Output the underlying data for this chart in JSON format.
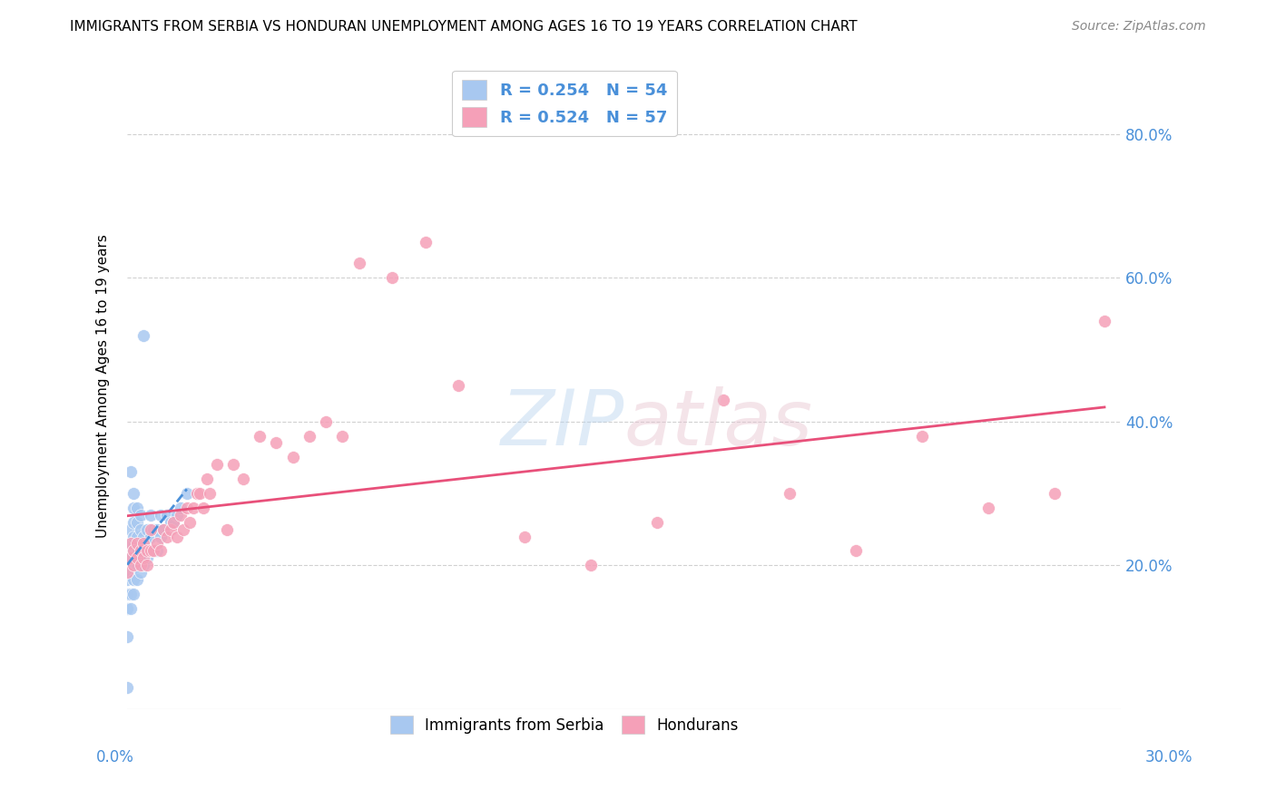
{
  "title": "IMMIGRANTS FROM SERBIA VS HONDURAN UNEMPLOYMENT AMONG AGES 16 TO 19 YEARS CORRELATION CHART",
  "source": "Source: ZipAtlas.com",
  "ylabel": "Unemployment Among Ages 16 to 19 years",
  "y_tick_labels": [
    "",
    "20.0%",
    "40.0%",
    "60.0%",
    "80.0%"
  ],
  "y_tick_positions": [
    0.0,
    0.2,
    0.4,
    0.6,
    0.8
  ],
  "xlim": [
    0.0,
    0.3
  ],
  "ylim": [
    0.0,
    0.9
  ],
  "color_serbia": "#a8c8f0",
  "color_honduran": "#f5a0b8",
  "color_trendline_serbia": "#4a90d9",
  "color_trendline_honduran": "#e8507a",
  "serbia_x": [
    0.0,
    0.0,
    0.0,
    0.0,
    0.0,
    0.001,
    0.001,
    0.001,
    0.001,
    0.001,
    0.001,
    0.001,
    0.002,
    0.002,
    0.002,
    0.002,
    0.002,
    0.002,
    0.002,
    0.002,
    0.003,
    0.003,
    0.003,
    0.003,
    0.003,
    0.003,
    0.004,
    0.004,
    0.004,
    0.004,
    0.004,
    0.005,
    0.005,
    0.005,
    0.005,
    0.006,
    0.006,
    0.006,
    0.007,
    0.007,
    0.007,
    0.008,
    0.008,
    0.009,
    0.009,
    0.01,
    0.01,
    0.011,
    0.012,
    0.013,
    0.014,
    0.015,
    0.016,
    0.018
  ],
  "serbia_y": [
    0.03,
    0.1,
    0.14,
    0.16,
    0.18,
    0.14,
    0.16,
    0.19,
    0.21,
    0.23,
    0.25,
    0.33,
    0.16,
    0.18,
    0.2,
    0.22,
    0.24,
    0.26,
    0.28,
    0.3,
    0.18,
    0.2,
    0.22,
    0.24,
    0.26,
    0.28,
    0.19,
    0.21,
    0.23,
    0.25,
    0.27,
    0.2,
    0.22,
    0.24,
    0.52,
    0.21,
    0.23,
    0.25,
    0.22,
    0.24,
    0.27,
    0.22,
    0.25,
    0.22,
    0.25,
    0.24,
    0.27,
    0.25,
    0.27,
    0.26,
    0.26,
    0.27,
    0.28,
    0.3
  ],
  "honduran_x": [
    0.0,
    0.001,
    0.001,
    0.002,
    0.002,
    0.003,
    0.003,
    0.004,
    0.004,
    0.005,
    0.005,
    0.006,
    0.006,
    0.007,
    0.007,
    0.008,
    0.009,
    0.01,
    0.011,
    0.012,
    0.013,
    0.014,
    0.015,
    0.016,
    0.017,
    0.018,
    0.019,
    0.02,
    0.021,
    0.022,
    0.023,
    0.024,
    0.025,
    0.027,
    0.03,
    0.032,
    0.035,
    0.04,
    0.045,
    0.05,
    0.055,
    0.06,
    0.065,
    0.07,
    0.08,
    0.09,
    0.1,
    0.12,
    0.14,
    0.16,
    0.18,
    0.2,
    0.22,
    0.24,
    0.26,
    0.28,
    0.295
  ],
  "honduran_y": [
    0.19,
    0.21,
    0.23,
    0.2,
    0.22,
    0.21,
    0.23,
    0.2,
    0.22,
    0.21,
    0.23,
    0.2,
    0.22,
    0.22,
    0.25,
    0.22,
    0.23,
    0.22,
    0.25,
    0.24,
    0.25,
    0.26,
    0.24,
    0.27,
    0.25,
    0.28,
    0.26,
    0.28,
    0.3,
    0.3,
    0.28,
    0.32,
    0.3,
    0.34,
    0.25,
    0.34,
    0.32,
    0.38,
    0.37,
    0.35,
    0.38,
    0.4,
    0.38,
    0.62,
    0.6,
    0.65,
    0.45,
    0.24,
    0.2,
    0.26,
    0.43,
    0.3,
    0.22,
    0.38,
    0.28,
    0.3,
    0.54
  ]
}
